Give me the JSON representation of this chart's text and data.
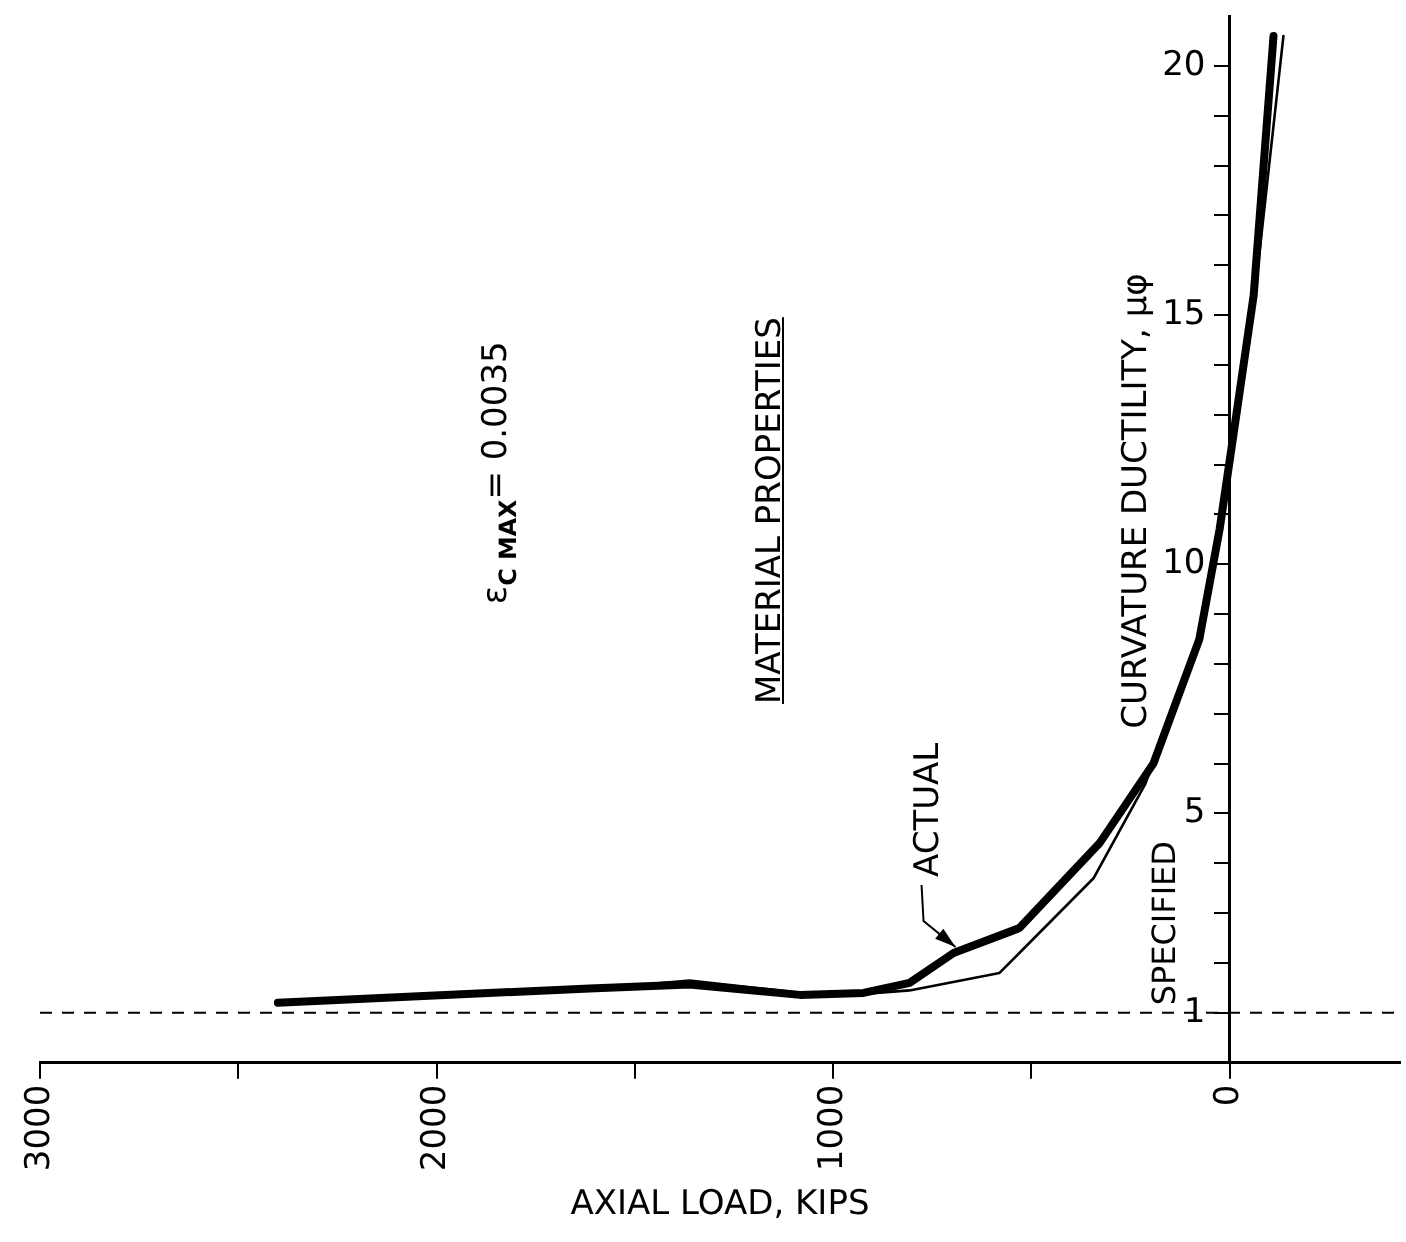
{
  "chart_data": {
    "type": "line",
    "xlabel": "AXIAL LOAD, KIPS",
    "ylabel": "CURVATURE DUCTILITY, μφ",
    "legend_title": "MATERIAL PROPERTIES",
    "annotations": [
      "ε$_{C MAX}$= 0.0035"
    ],
    "xlim": [
      3000,
      -430
    ],
    "xticks": [
      3000,
      {
        "value": 2500,
        "label": null
      },
      2000,
      {
        "value": 1500,
        "label": null
      },
      1000,
      {
        "value": 500,
        "label": null
      },
      0
    ],
    "ylim": [
      0,
      21
    ],
    "yticks": [
      1,
      {
        "value": 2,
        "label": null
      },
      {
        "value": 3,
        "label": null
      },
      {
        "value": 4,
        "label": null
      },
      5,
      {
        "value": 6,
        "label": null
      },
      {
        "value": 7,
        "label": null
      },
      {
        "value": 8,
        "label": null
      },
      {
        "value": 9,
        "label": null
      },
      10,
      {
        "value": 11,
        "label": null
      },
      {
        "value": 12,
        "label": null
      },
      {
        "value": 13,
        "label": null
      },
      {
        "value": 14,
        "label": null
      },
      15,
      {
        "value": 16,
        "label": null
      },
      {
        "value": 17,
        "label": null
      },
      {
        "value": 18,
        "label": null
      },
      {
        "value": 19,
        "label": null
      },
      20
    ],
    "ref_lines": [
      {
        "axis": "y",
        "value": 1,
        "line_style": "dashed",
        "color": "#000000"
      }
    ],
    "marker": "none",
    "series": [
      {
        "name": "ACTUAL",
        "color": "#000000",
        "x": [
          2400,
          1614,
          1362,
          1084,
          923,
          807,
          696,
          530,
          328,
          192,
          76,
          25,
          -10,
          -61,
          -111
        ],
        "values": [
          1.2,
          1.49,
          1.57,
          1.36,
          1.4,
          1.6,
          2.2,
          2.7,
          4.4,
          6.0,
          8.5,
          10.7,
          12.6,
          15.4,
          20.6
        ]
      },
      {
        "name": "SPECIFIED",
        "color": "#000000",
        "x": [
          1640,
          1362,
          1084,
          923,
          807,
          580,
          530,
          343,
          212,
          76,
          25,
          -61,
          -136
        ],
        "values": [
          1.45,
          1.65,
          1.4,
          1.38,
          1.45,
          1.8,
          2.2,
          3.7,
          5.6,
          8.5,
          10.7,
          15.2,
          20.6
        ]
      }
    ]
  }
}
